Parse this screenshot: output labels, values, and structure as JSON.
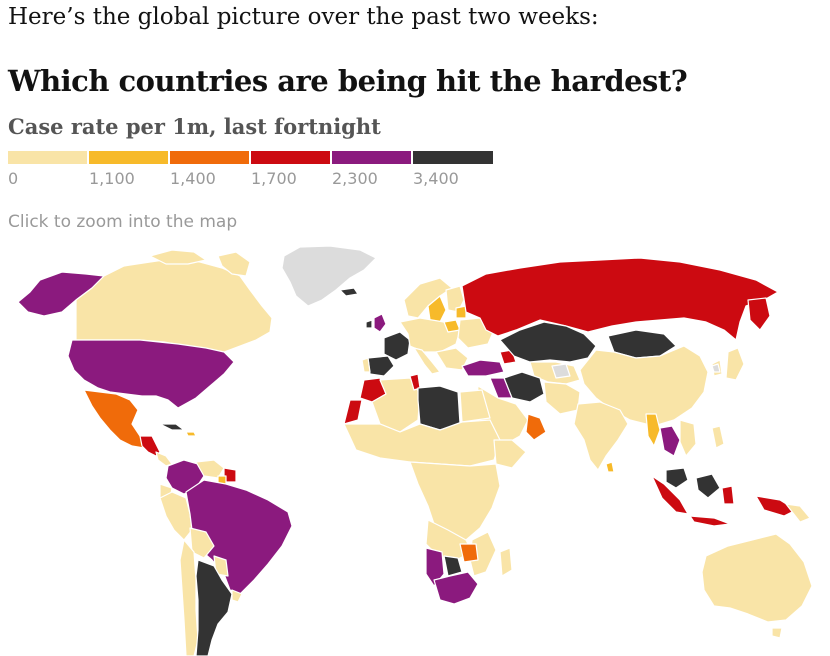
{
  "intro": "Here’s the global picture over the past two weeks:",
  "title": "Which countries are being hit the hardest?",
  "subtitle": "Case rate per 1m, last fortnight",
  "hint": "Click to zoom into the map",
  "colors": {
    "no_data": "#dcdcdc",
    "scale": [
      "#f9e4a7",
      "#f7ba2a",
      "#f06b0a",
      "#cc0a11",
      "#8b1a7e",
      "#333333"
    ]
  },
  "legend": {
    "ticks": [
      "0",
      "1,100",
      "1,400",
      "1,700",
      "2,300",
      "3,400"
    ]
  }
}
